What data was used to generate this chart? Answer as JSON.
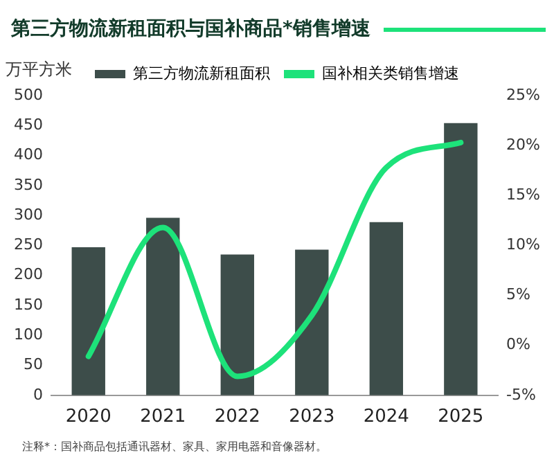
{
  "chart_data": {
    "type": "bar",
    "title": "第三方物流新租面积与国补商品*销售增速",
    "ylabel": "万平方米",
    "categories": [
      "2020",
      "2021",
      "2022",
      "2023",
      "2024",
      "2025"
    ],
    "series": [
      {
        "name": "第三方物流新租面积",
        "color": "#3d4d4a",
        "values": [
          247,
          296,
          235,
          243,
          289,
          454
        ]
      },
      {
        "name": "国补相关类销售增速",
        "type": "line",
        "axis": "y2",
        "color": "#1de27a",
        "values": [
          -1.1,
          11.8,
          -3.1,
          3,
          17.8,
          20.3
        ]
      }
    ],
    "ylim": [
      0,
      500
    ],
    "yticks": [
      0,
      50,
      100,
      150,
      200,
      250,
      300,
      350,
      400,
      450,
      500
    ],
    "y2lim": [
      -5,
      25
    ],
    "y2ticks": [
      {
        "value": -5,
        "label": "-5%"
      },
      {
        "value": 0,
        "label": "0%"
      },
      {
        "value": 5,
        "label": "5%"
      },
      {
        "value": 10,
        "label": "10%"
      },
      {
        "value": 15,
        "label": "15%"
      },
      {
        "value": 20,
        "label": "20%"
      },
      {
        "value": 25,
        "label": "25%"
      }
    ],
    "grid": false,
    "legend": "top",
    "marker": "none",
    "line_style": "solid",
    "annotations": [
      "注释*：国补商品包括通讯器材、家具、家用电器和音像器材。"
    ]
  }
}
